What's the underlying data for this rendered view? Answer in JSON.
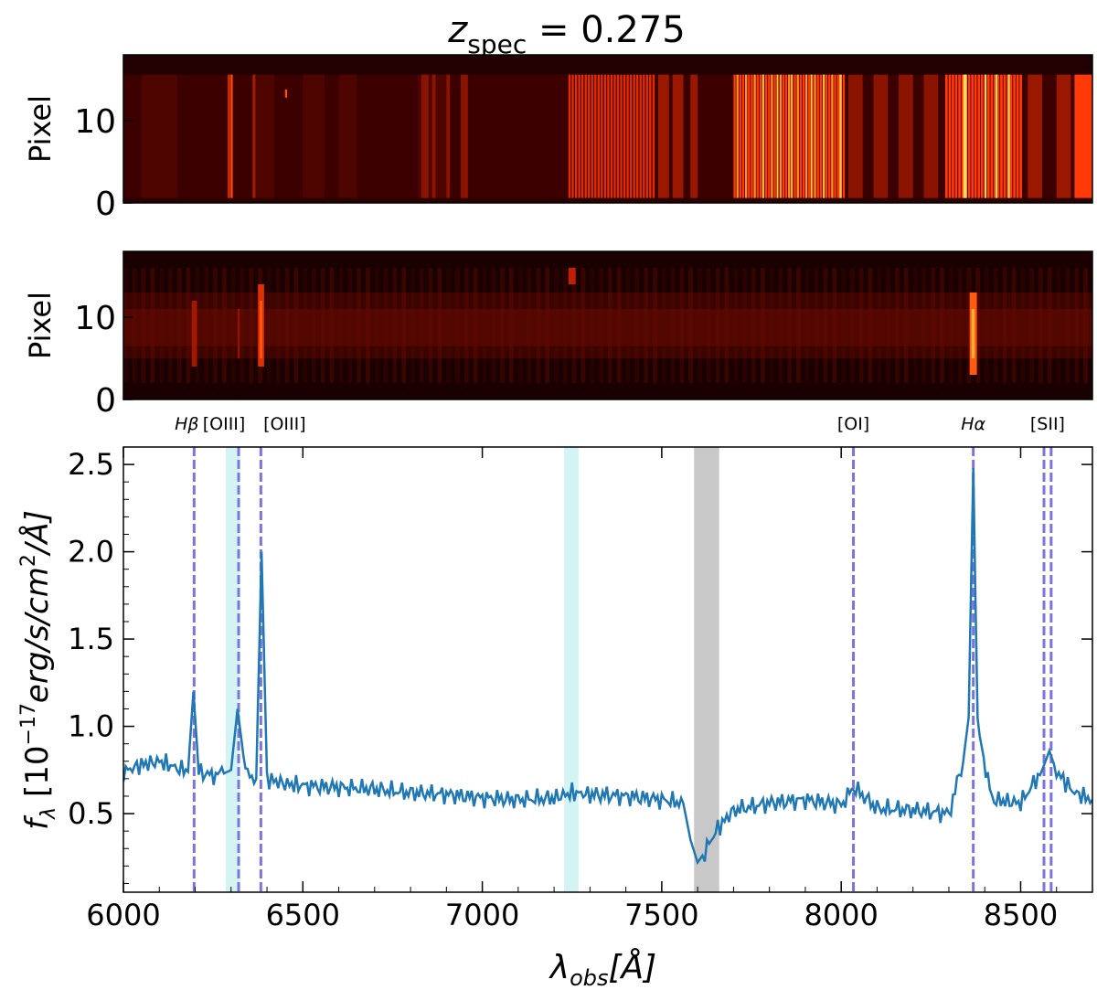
{
  "chart_data": [
    {
      "type": "heatmap",
      "title_var": "z",
      "title_sub": "spec",
      "title_rest": " = 0.275",
      "ylabel": "Pixel",
      "ylim": [
        0,
        18
      ],
      "yticks": [
        "0",
        "10"
      ],
      "x_range_angstrom": [
        6000,
        8700
      ],
      "colormap": "hot",
      "description_values": "2D sky spectrum: bright emission bands near 7200-7400, 7700-8000, 8300-8500 and 8650-8700"
    },
    {
      "type": "heatmap",
      "ylabel": "Pixel",
      "ylim": [
        0,
        18
      ],
      "yticks": [
        "0",
        "10"
      ],
      "x_range_angstrom": [
        6000,
        8700
      ],
      "colormap": "hot"
    },
    {
      "type": "line",
      "xlabel": "λ_obs[Å]",
      "ylabel": "f_λ [10^-17 erg/s/cm^2/Å]",
      "xlim": [
        6000,
        8700
      ],
      "ylim": [
        0.05,
        2.6
      ],
      "xticks": [
        "6000",
        "6500",
        "7000",
        "7500",
        "8000",
        "8500"
      ],
      "yticks": [
        "0.5",
        "1.0",
        "1.5",
        "2.0",
        "2.5"
      ],
      "series": [
        {
          "x": [
            6000,
            6050,
            6100,
            6150,
            6180,
            6195,
            6210,
            6240,
            6280,
            6300,
            6318,
            6340,
            6370,
            6385,
            6400,
            6450,
            6500,
            6600,
            6700,
            6800,
            6900,
            7000,
            7100,
            7200,
            7250,
            7300,
            7400,
            7500,
            7560,
            7580,
            7600,
            7620,
            7650,
            7700,
            7800,
            7900,
            8000,
            8035,
            8100,
            8200,
            8300,
            8340,
            8355,
            8368,
            8380,
            8420,
            8500,
            8560,
            8580,
            8600,
            8650,
            8700
          ],
          "y": [
            0.74,
            0.78,
            0.8,
            0.76,
            0.74,
            1.2,
            0.74,
            0.72,
            0.73,
            0.75,
            1.1,
            0.74,
            0.7,
            2.0,
            0.7,
            0.67,
            0.66,
            0.65,
            0.64,
            0.62,
            0.61,
            0.59,
            0.58,
            0.59,
            0.62,
            0.61,
            0.6,
            0.58,
            0.56,
            0.35,
            0.22,
            0.28,
            0.4,
            0.52,
            0.56,
            0.58,
            0.55,
            0.65,
            0.53,
            0.52,
            0.5,
            0.8,
            1.05,
            2.48,
            1.0,
            0.58,
            0.56,
            0.75,
            0.86,
            0.74,
            0.62,
            0.58
          ]
        }
      ],
      "emission_lines": [
        {
          "label": "Hβ",
          "x": 6197
        },
        {
          "label": "[OIII]",
          "x": 6321
        },
        {
          "label": "[OIII]",
          "x": 6383
        },
        {
          "label": "[OI]",
          "x": 8034
        },
        {
          "label": "Hα",
          "x": 8368
        },
        {
          "label": "[SII]",
          "x": 8565
        },
        {
          "label": "[SII]",
          "x": 8585
        }
      ],
      "shaded_bands": [
        {
          "x0": 6285,
          "x1": 6325,
          "color": "#d4f3f3"
        },
        {
          "x0": 7228,
          "x1": 7268,
          "color": "#d4f3f3"
        },
        {
          "x0": 7590,
          "x1": 7660,
          "color": "#c8c8c8"
        }
      ],
      "colors": {
        "line": "#1f77b4",
        "marker": "#7b74e0"
      }
    }
  ]
}
